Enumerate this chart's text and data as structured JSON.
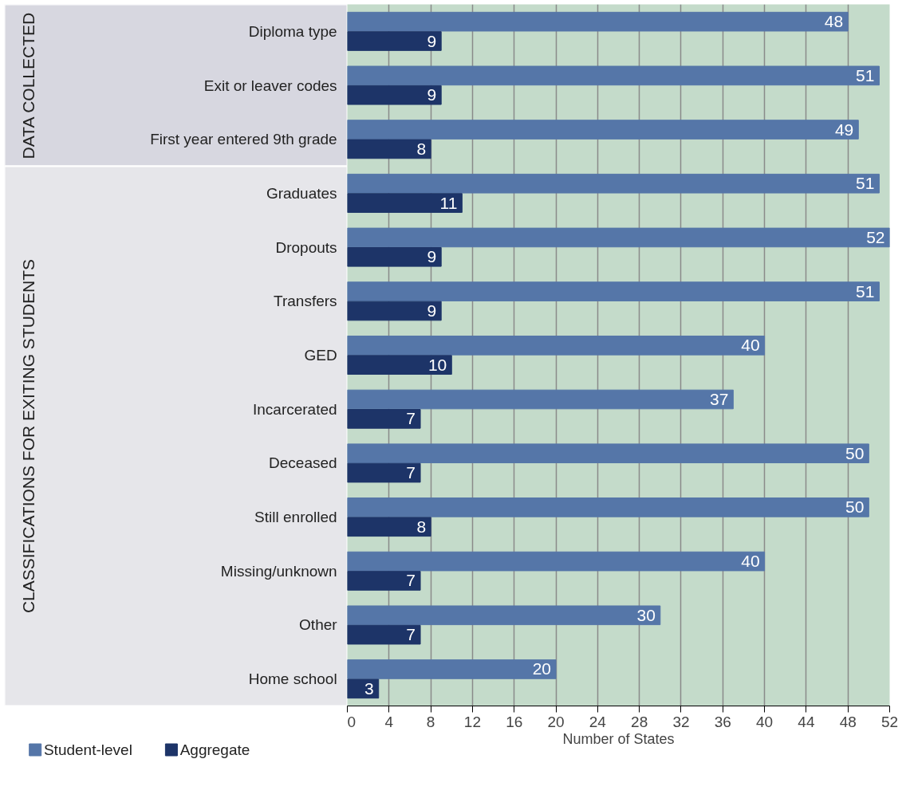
{
  "chart_data": {
    "type": "bar",
    "orientation": "horizontal",
    "xlabel": "Number of States",
    "categories": [
      "Diploma type",
      "Exit or leaver codes",
      "First year entered 9th grade",
      "Graduates",
      "Dropouts",
      "Transfers",
      "GED",
      "Incarcerated",
      "Deceased",
      "Still enrolled",
      "Missing/unknown",
      "Other",
      "Home school"
    ],
    "series": [
      {
        "name": "Student-level",
        "color": "#5576a8",
        "values": [
          48,
          51,
          49,
          51,
          52,
          51,
          40,
          37,
          50,
          50,
          40,
          30,
          20
        ]
      },
      {
        "name": "Aggregate",
        "color": "#1d3468",
        "values": [
          9,
          9,
          8,
          11,
          9,
          9,
          10,
          7,
          7,
          8,
          7,
          7,
          3
        ]
      }
    ],
    "xlim": [
      0,
      52
    ],
    "xticks": [
      0,
      4,
      8,
      12,
      16,
      20,
      24,
      28,
      32,
      36,
      40,
      44,
      48,
      52
    ],
    "grid": "x",
    "legend": "bottom",
    "data_labels": true,
    "annotations": [
      "DATA COLLECTED",
      "CLASSIFICATIONS FOR EXITING STUDENTS"
    ]
  }
}
